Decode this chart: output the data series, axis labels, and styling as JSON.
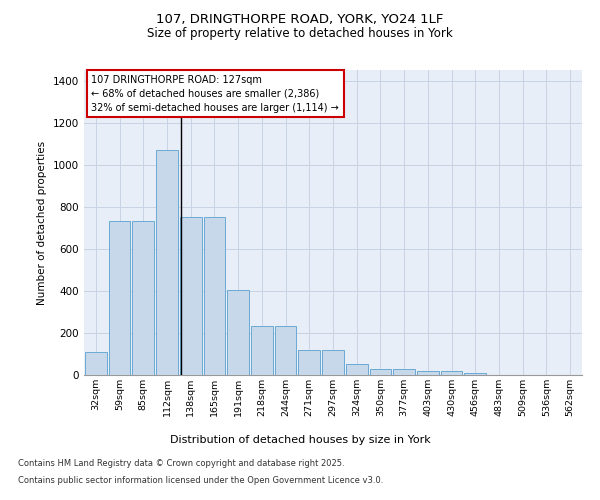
{
  "title_line1": "107, DRINGTHORPE ROAD, YORK, YO24 1LF",
  "title_line2": "Size of property relative to detached houses in York",
  "xlabel": "Distribution of detached houses by size in York",
  "ylabel": "Number of detached properties",
  "categories": [
    "32sqm",
    "59sqm",
    "85sqm",
    "112sqm",
    "138sqm",
    "165sqm",
    "191sqm",
    "218sqm",
    "244sqm",
    "271sqm",
    "297sqm",
    "324sqm",
    "350sqm",
    "377sqm",
    "403sqm",
    "430sqm",
    "456sqm",
    "483sqm",
    "509sqm",
    "536sqm",
    "562sqm"
  ],
  "values": [
    110,
    730,
    730,
    1070,
    750,
    750,
    405,
    235,
    235,
    120,
    120,
    50,
    28,
    28,
    20,
    20,
    8,
    0,
    0,
    0,
    0
  ],
  "bar_color": "#c8d8eb",
  "bar_edge_color": "#6aaad4",
  "vline_color": "#000000",
  "annotation_title": "107 DRINGTHORPE ROAD: 127sqm",
  "annotation_line2": "← 68% of detached houses are smaller (2,386)",
  "annotation_line3": "32% of semi-detached houses are larger (1,114) →",
  "annotation_box_color": "#cc0000",
  "grid_color": "#c8d4e4",
  "bg_color": "#e8eef8",
  "ylim": [
    0,
    1450
  ],
  "yticks": [
    0,
    200,
    400,
    600,
    800,
    1000,
    1200,
    1400
  ],
  "footnote1": "Contains HM Land Registry data © Crown copyright and database right 2025.",
  "footnote2": "Contains public sector information licensed under the Open Government Licence v3.0."
}
